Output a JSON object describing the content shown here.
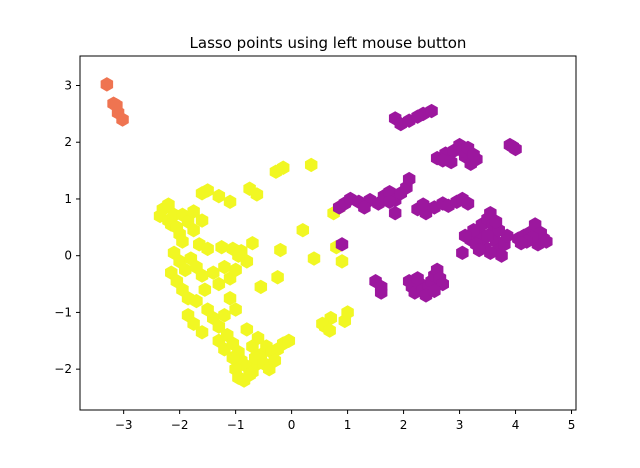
{
  "chart_data": {
    "type": "scatter",
    "title": "Lasso points using left mouse button",
    "xlabel": "",
    "ylabel": "",
    "xlim": [
      -3.78,
      5.08
    ],
    "ylim": [
      -2.72,
      3.52
    ],
    "grid": false,
    "marker": "hexagon",
    "x_ticks": [
      {
        "value": -3,
        "label": "−3"
      },
      {
        "value": -2,
        "label": "−2"
      },
      {
        "value": -1,
        "label": "−1"
      },
      {
        "value": 0,
        "label": "0"
      },
      {
        "value": 1,
        "label": "1"
      },
      {
        "value": 2,
        "label": "2"
      },
      {
        "value": 3,
        "label": "3"
      },
      {
        "value": 4,
        "label": "4"
      },
      {
        "value": 5,
        "label": "5"
      }
    ],
    "y_ticks": [
      {
        "value": -2,
        "label": "−2"
      },
      {
        "value": -1,
        "label": "−1"
      },
      {
        "value": 0,
        "label": "0"
      },
      {
        "value": 1,
        "label": "1"
      },
      {
        "value": 2,
        "label": "2"
      },
      {
        "value": 3,
        "label": "3"
      }
    ],
    "series": [
      {
        "color": "#ef7451",
        "points": [
          [
            -3.3,
            3.02
          ],
          [
            -3.18,
            2.68
          ],
          [
            -3.13,
            2.65
          ],
          [
            -3.1,
            2.52
          ],
          [
            -3.02,
            2.4
          ]
        ]
      },
      {
        "color": "#f1f723",
        "points": [
          [
            -2.3,
            0.82
          ],
          [
            -2.35,
            0.7
          ],
          [
            -2.2,
            0.62
          ],
          [
            -2.1,
            0.72
          ],
          [
            -2.15,
            0.55
          ],
          [
            -2.2,
            0.9
          ],
          [
            -2.05,
            0.5
          ],
          [
            -2.0,
            0.38
          ],
          [
            -1.95,
            0.72
          ],
          [
            -1.85,
            0.6
          ],
          [
            -1.75,
            0.45
          ],
          [
            -1.95,
            0.25
          ],
          [
            -1.6,
            1.1
          ],
          [
            -1.5,
            1.15
          ],
          [
            -1.3,
            1.05
          ],
          [
            -1.1,
            0.95
          ],
          [
            -1.75,
            0.78
          ],
          [
            -1.6,
            0.62
          ],
          [
            -0.75,
            1.18
          ],
          [
            -0.62,
            1.08
          ],
          [
            -0.28,
            1.48
          ],
          [
            -0.15,
            1.55
          ],
          [
            0.35,
            1.6
          ],
          [
            -1.65,
            0.2
          ],
          [
            -1.5,
            0.12
          ],
          [
            -1.25,
            0.15
          ],
          [
            -1.05,
            0.12
          ],
          [
            -0.9,
            0.08
          ],
          [
            -0.8,
            -0.1
          ],
          [
            -2.1,
            0.05
          ],
          [
            -2.0,
            -0.1
          ],
          [
            -1.9,
            -0.25
          ],
          [
            -1.8,
            -0.05
          ],
          [
            -1.7,
            -0.2
          ],
          [
            -1.6,
            -0.35
          ],
          [
            -2.15,
            -0.3
          ],
          [
            -2.05,
            -0.45
          ],
          [
            -1.95,
            -0.6
          ],
          [
            -1.85,
            -0.75
          ],
          [
            -1.7,
            -0.8
          ],
          [
            -1.55,
            -0.6
          ],
          [
            -1.4,
            -0.3
          ],
          [
            -1.3,
            -0.5
          ],
          [
            -1.2,
            -0.2
          ],
          [
            -1.1,
            -0.4
          ],
          [
            -1.0,
            -0.25
          ],
          [
            -0.95,
            0.0
          ],
          [
            -1.5,
            -0.95
          ],
          [
            -1.4,
            -1.1
          ],
          [
            -1.3,
            -1.25
          ],
          [
            -1.2,
            -1.05
          ],
          [
            -1.1,
            -0.75
          ],
          [
            -1.0,
            -0.95
          ],
          [
            -1.85,
            -1.05
          ],
          [
            -1.75,
            -1.2
          ],
          [
            -1.6,
            -1.35
          ],
          [
            -1.3,
            -1.5
          ],
          [
            -1.2,
            -1.65
          ],
          [
            -1.15,
            -1.4
          ],
          [
            -1.05,
            -1.55
          ],
          [
            -0.95,
            -1.7
          ],
          [
            -0.9,
            -1.85
          ],
          [
            -0.8,
            -1.95
          ],
          [
            -0.7,
            -2.05
          ],
          [
            -0.6,
            -1.9
          ],
          [
            -0.55,
            -1.75
          ],
          [
            -0.45,
            -1.6
          ],
          [
            -0.35,
            -1.7
          ],
          [
            -0.25,
            -1.65
          ],
          [
            -0.15,
            -1.55
          ],
          [
            -0.05,
            -1.5
          ],
          [
            -1.0,
            -2.0
          ],
          [
            -0.95,
            -2.15
          ],
          [
            -0.85,
            -2.2
          ],
          [
            -0.75,
            -2.1
          ],
          [
            -0.65,
            -1.8
          ],
          [
            -0.7,
            -1.6
          ],
          [
            -0.6,
            -1.45
          ],
          [
            -0.8,
            -1.3
          ],
          [
            -0.5,
            -1.9
          ],
          [
            -0.4,
            -2.0
          ],
          [
            -0.3,
            -1.85
          ],
          [
            -1.05,
            -1.8
          ],
          [
            -0.7,
            0.22
          ],
          [
            -0.55,
            -0.55
          ],
          [
            -0.2,
            0.1
          ],
          [
            -0.25,
            -0.38
          ],
          [
            0.2,
            0.45
          ],
          [
            0.4,
            -0.05
          ],
          [
            0.75,
            0.75
          ],
          [
            0.85,
            0.85
          ],
          [
            0.8,
            0.15
          ],
          [
            0.9,
            -0.1
          ],
          [
            0.6,
            -1.25
          ],
          [
            0.7,
            -1.1
          ],
          [
            0.55,
            -1.2
          ],
          [
            0.95,
            -1.15
          ],
          [
            1.0,
            -1.0
          ],
          [
            0.68,
            -1.32
          ]
        ]
      },
      {
        "color": "#9c179e",
        "points": [
          [
            1.85,
            2.42
          ],
          [
            1.95,
            2.32
          ],
          [
            2.1,
            2.38
          ],
          [
            2.35,
            2.5
          ],
          [
            2.5,
            2.55
          ],
          [
            2.25,
            2.45
          ],
          [
            2.6,
            1.72
          ],
          [
            2.75,
            1.8
          ],
          [
            2.9,
            1.85
          ],
          [
            3.0,
            1.95
          ],
          [
            3.1,
            1.75
          ],
          [
            3.2,
            1.62
          ],
          [
            2.85,
            1.65
          ],
          [
            3.05,
            1.85
          ],
          [
            3.3,
            1.7
          ],
          [
            3.15,
            1.9
          ],
          [
            3.25,
            1.78
          ],
          [
            2.7,
            1.68
          ],
          [
            3.9,
            1.95
          ],
          [
            4.0,
            1.88
          ],
          [
            3.95,
            1.92
          ],
          [
            0.85,
            0.85
          ],
          [
            0.95,
            0.92
          ],
          [
            1.05,
            1.0
          ],
          [
            1.2,
            0.95
          ],
          [
            1.4,
            0.98
          ],
          [
            1.55,
            0.92
          ],
          [
            1.65,
            1.05
          ],
          [
            1.75,
            1.12
          ],
          [
            1.85,
            0.98
          ],
          [
            1.95,
            1.1
          ],
          [
            2.05,
            1.2
          ],
          [
            2.1,
            1.35
          ],
          [
            1.3,
            0.85
          ],
          [
            1.75,
            0.95
          ],
          [
            1.85,
            0.75
          ],
          [
            2.25,
            0.82
          ],
          [
            2.4,
            0.75
          ],
          [
            2.35,
            0.9
          ],
          [
            2.55,
            0.85
          ],
          [
            2.7,
            0.92
          ],
          [
            2.8,
            0.88
          ],
          [
            2.95,
            0.95
          ],
          [
            3.05,
            1.0
          ],
          [
            3.15,
            0.92
          ],
          [
            3.2,
            0.28
          ],
          [
            3.3,
            0.35
          ],
          [
            3.35,
            0.45
          ],
          [
            3.4,
            0.55
          ],
          [
            3.5,
            0.65
          ],
          [
            3.55,
            0.75
          ],
          [
            3.6,
            0.4
          ],
          [
            3.65,
            0.25
          ],
          [
            3.7,
            0.1
          ],
          [
            3.75,
            0.0
          ],
          [
            3.8,
            0.2
          ],
          [
            3.85,
            0.35
          ],
          [
            3.45,
            0.15
          ],
          [
            3.55,
            0.05
          ],
          [
            3.4,
            0.3
          ],
          [
            3.3,
            0.2
          ],
          [
            3.25,
            0.45
          ],
          [
            3.6,
            0.55
          ],
          [
            3.7,
            0.45
          ],
          [
            3.5,
            0.35
          ],
          [
            3.65,
            0.6
          ],
          [
            3.1,
            0.35
          ],
          [
            3.05,
            0.05
          ],
          [
            3.35,
            0.1
          ],
          [
            4.05,
            0.3
          ],
          [
            4.15,
            0.35
          ],
          [
            4.25,
            0.4
          ],
          [
            4.35,
            0.55
          ],
          [
            4.45,
            0.4
          ],
          [
            4.5,
            0.3
          ],
          [
            4.4,
            0.2
          ],
          [
            4.3,
            0.32
          ],
          [
            4.55,
            0.25
          ],
          [
            4.2,
            0.25
          ],
          [
            4.1,
            0.22
          ],
          [
            0.9,
            0.2
          ],
          [
            1.5,
            -0.45
          ],
          [
            1.6,
            -0.55
          ],
          [
            1.6,
            -0.65
          ],
          [
            2.1,
            -0.45
          ],
          [
            2.15,
            -0.55
          ],
          [
            2.2,
            -0.65
          ],
          [
            2.3,
            -0.5
          ],
          [
            2.35,
            -0.6
          ],
          [
            2.45,
            -0.55
          ],
          [
            2.5,
            -0.45
          ],
          [
            2.55,
            -0.35
          ],
          [
            2.6,
            -0.25
          ],
          [
            2.65,
            -0.4
          ],
          [
            2.7,
            -0.5
          ],
          [
            2.4,
            -0.7
          ],
          [
            2.55,
            -0.62
          ],
          [
            2.25,
            -0.4
          ]
        ]
      }
    ]
  }
}
